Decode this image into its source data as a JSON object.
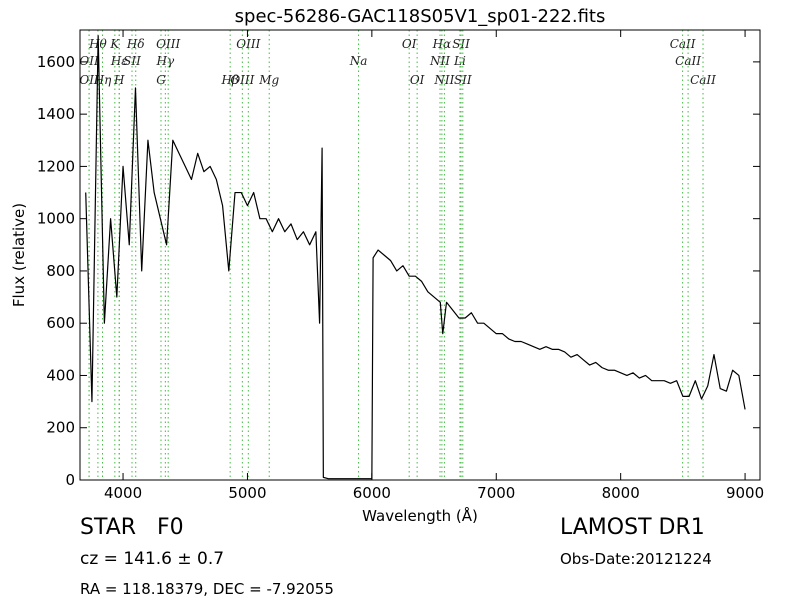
{
  "chart_data": {
    "type": "line",
    "title": "spec-56286-GAC118S05V1_sp01-222.fits",
    "x_label": "Wavelength (Å)",
    "y_label": "Flux (relative)",
    "xlim": [
      3654,
      9120
    ],
    "ylim": [
      0,
      1722
    ],
    "xticks": [
      4000,
      5000,
      6000,
      7000,
      8000,
      9000
    ],
    "yticks": [
      0,
      200,
      400,
      600,
      800,
      1000,
      1200,
      1400,
      1600
    ],
    "grid": false,
    "color": "#000000",
    "line_marker_color": "#44bb44",
    "x": [
      3700,
      3750,
      3800,
      3850,
      3900,
      3950,
      4000,
      4050,
      4100,
      4150,
      4200,
      4250,
      4300,
      4350,
      4400,
      4450,
      4500,
      4550,
      4600,
      4650,
      4700,
      4750,
      4800,
      4850,
      4900,
      4950,
      5000,
      5050,
      5100,
      5150,
      5200,
      5250,
      5300,
      5350,
      5400,
      5450,
      5500,
      5550,
      5580,
      5600,
      5610,
      5650,
      5700,
      5800,
      5900,
      6000,
      6010,
      6050,
      6100,
      6150,
      6200,
      6250,
      6300,
      6350,
      6400,
      6450,
      6500,
      6550,
      6570,
      6600,
      6650,
      6700,
      6750,
      6800,
      6850,
      6900,
      6950,
      7000,
      7050,
      7100,
      7150,
      7200,
      7250,
      7300,
      7350,
      7400,
      7450,
      7500,
      7550,
      7600,
      7650,
      7700,
      7750,
      7800,
      7850,
      7900,
      7950,
      8000,
      8050,
      8100,
      8150,
      8200,
      8250,
      8300,
      8350,
      8400,
      8450,
      8500,
      8550,
      8600,
      8650,
      8700,
      8750,
      8800,
      8850,
      8900,
      8950,
      9000
    ],
    "values": [
      1100,
      300,
      1700,
      600,
      1000,
      700,
      1200,
      900,
      1500,
      800,
      1300,
      1100,
      1000,
      900,
      1300,
      1250,
      1200,
      1150,
      1250,
      1180,
      1200,
      1150,
      1050,
      800,
      1100,
      1100,
      1050,
      1100,
      1000,
      1000,
      950,
      1000,
      950,
      980,
      920,
      950,
      900,
      950,
      600,
      1270,
      10,
      5,
      5,
      5,
      5,
      5,
      850,
      880,
      860,
      840,
      800,
      820,
      780,
      780,
      760,
      720,
      700,
      680,
      560,
      680,
      650,
      620,
      620,
      640,
      600,
      600,
      580,
      560,
      560,
      540,
      530,
      530,
      520,
      510,
      500,
      510,
      500,
      500,
      490,
      470,
      480,
      460,
      440,
      450,
      430,
      420,
      420,
      410,
      400,
      410,
      390,
      400,
      380,
      380,
      380,
      370,
      380,
      320,
      320,
      380,
      310,
      360,
      480,
      350,
      340,
      420,
      400,
      270
    ],
    "spectral_lines": [
      [
        {
          "text": "Hθ",
          "x": 3798
        },
        {
          "text": "K",
          "x": 3934
        },
        {
          "text": "Hδ",
          "x": 4102
        },
        {
          "text": "OIII",
          "x": 4363
        },
        {
          "text": "OIII",
          "x": 5007
        },
        {
          "text": "OI",
          "x": 6300
        },
        {
          "text": "Hα",
          "x": 6563
        },
        {
          "text": "SII",
          "x": 6717
        },
        {
          "text": "CaII",
          "x": 8498
        }
      ],
      [
        {
          "text": "OII",
          "x": 3727
        },
        {
          "text": "Hε",
          "x": 3970
        },
        {
          "text": "SII",
          "x": 4072
        },
        {
          "text": "Hγ",
          "x": 4340
        },
        {
          "text": "Na",
          "x": 5893
        },
        {
          "text": "NII",
          "x": 6548
        },
        {
          "text": "Li",
          "x": 6708
        },
        {
          "text": "CaII",
          "x": 8542
        }
      ],
      [
        {
          "text": "OII",
          "x": 3727
        },
        {
          "text": "Hη",
          "x": 3835
        },
        {
          "text": "H",
          "x": 3969
        },
        {
          "text": "G",
          "x": 4305
        },
        {
          "text": "Hβ",
          "x": 4861
        },
        {
          "text": "OIII",
          "x": 4959
        },
        {
          "text": "Mg",
          "x": 5175
        },
        {
          "text": "OI",
          "x": 6364
        },
        {
          "text": "NII",
          "x": 6583
        },
        {
          "text": "SII",
          "x": 6731
        },
        {
          "text": "CaII",
          "x": 8662
        }
      ]
    ],
    "object_class": "STAR   F0",
    "redshift": "cz = 141.6 ± 0.7",
    "coordinates": "RA = 118.18379, DEC = -7.92055",
    "survey": "LAMOST DR1",
    "obs_date": "Obs-Date:20121224"
  }
}
